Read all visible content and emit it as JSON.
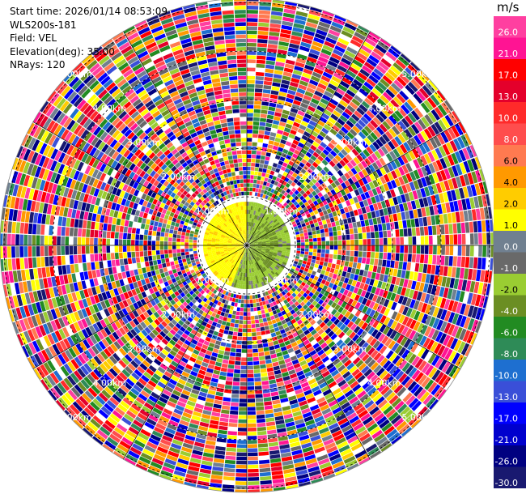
{
  "header": {
    "start_time": "Start time: 2026/01/14 08:53:09",
    "instrument": "WLS200s-181",
    "field": "Field: VEL",
    "elevation": "Elevation(deg): 35.00",
    "nrays": "NRays: 120"
  },
  "colorbar": {
    "unit": "m/s",
    "ticks": [
      "26.0",
      "21.0",
      "17.0",
      "13.0",
      "10.0",
      "8.0",
      "6.0",
      "4.0",
      "2.0",
      "1.0",
      "0.0",
      "-1.0",
      "-2.0",
      "-4.0",
      "-6.0",
      "-8.0",
      "-10.0",
      "-13.0",
      "-17.0",
      "-21.0",
      "-26.0",
      "-30.0"
    ],
    "colors": [
      "#ff3fa0",
      "#ff1493",
      "#ff0000",
      "#e4002b",
      "#ff2a2a",
      "#ff4d4d",
      "#ff7a50",
      "#ff9900",
      "#ffcc00",
      "#ffff00",
      "#708090",
      "#696969",
      "#9acd32",
      "#6b8e23",
      "#228b22",
      "#2e8b57",
      "#1e6fd0",
      "#3a4fd8",
      "#0000ff",
      "#0000cd",
      "#000080",
      "#191970"
    ]
  },
  "chart_data": {
    "type": "ppi",
    "field": "VEL",
    "units": "m/s",
    "nrays": 120,
    "elevation_deg": 35.0,
    "range_rings_km": [
      1.0,
      2.0,
      3.0,
      4.0,
      5.0
    ],
    "range_labels": {
      "ring1": "1.00km",
      "ring2": "2.00km",
      "ring3": "3.00km",
      "ring4": "4.00km",
      "ring5": "5.00km"
    },
    "near_range": {
      "km": 0.9,
      "dominant_values": [
        "2.0",
        "-2.0",
        "-6.0"
      ]
    }
  }
}
